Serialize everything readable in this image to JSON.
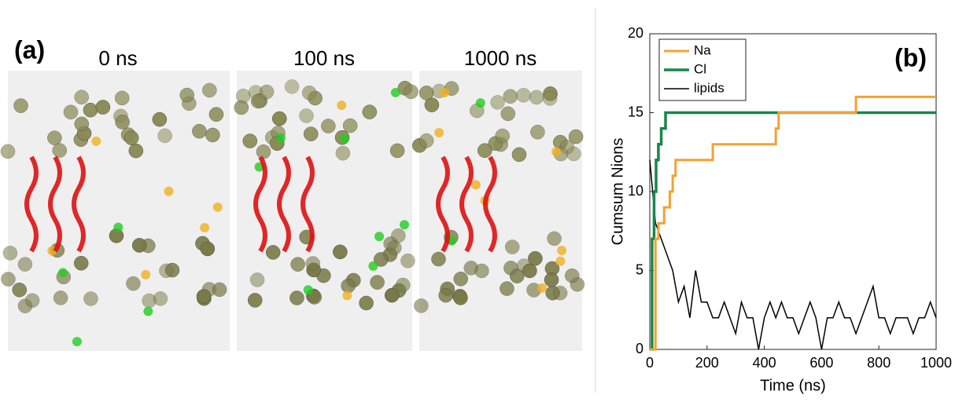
{
  "panel_a": {
    "label": "(a)",
    "snapshots": [
      "0 ns",
      "100 ns",
      "1000 ns"
    ]
  },
  "chart_data": {
    "type": "line",
    "panel_label": "(b)",
    "x_label": "Time (ns)",
    "y_label": "Cumsum Nions",
    "xlim": [
      0,
      1000
    ],
    "ylim": [
      0,
      20
    ],
    "xticks": [
      0,
      200,
      400,
      600,
      800,
      1000
    ],
    "yticks": [
      0,
      5,
      10,
      15,
      20
    ],
    "grid": false,
    "legend": "upper left",
    "series": [
      {
        "name": "Na",
        "color": "#f5a132",
        "width": 3,
        "x": [
          0,
          20,
          20,
          30,
          30,
          50,
          50,
          70,
          70,
          80,
          80,
          90,
          90,
          220,
          220,
          440,
          440,
          450,
          450,
          720,
          720,
          1000
        ],
        "values": [
          0,
          0,
          7,
          7,
          8,
          8,
          9,
          9,
          10,
          10,
          11,
          11,
          12,
          12,
          13,
          13,
          14,
          14,
          15,
          15,
          16,
          16
        ]
      },
      {
        "name": "Cl",
        "color": "#16884a",
        "width": 3.5,
        "x": [
          0,
          8,
          8,
          15,
          15,
          22,
          22,
          30,
          30,
          40,
          40,
          55,
          55,
          1000
        ],
        "values": [
          0,
          0,
          7,
          7,
          10,
          10,
          12,
          12,
          13,
          13,
          14,
          14,
          15,
          15
        ]
      },
      {
        "name": "lipids",
        "color": "#000000",
        "width": 1.5,
        "x": [
          0,
          20,
          40,
          60,
          80,
          100,
          120,
          140,
          160,
          180,
          200,
          220,
          240,
          260,
          280,
          300,
          320,
          340,
          360,
          380,
          400,
          420,
          440,
          460,
          480,
          500,
          520,
          540,
          560,
          580,
          600,
          620,
          640,
          660,
          680,
          700,
          720,
          740,
          760,
          780,
          800,
          820,
          840,
          860,
          880,
          900,
          920,
          940,
          960,
          980,
          1000
        ],
        "values": [
          12,
          8,
          7,
          6,
          5,
          3,
          4,
          2,
          5,
          3,
          3,
          2,
          2,
          3,
          2,
          1,
          3,
          2,
          2,
          0,
          2,
          3,
          2,
          3,
          2,
          2,
          1,
          2,
          3,
          2,
          0,
          2,
          2,
          3,
          2,
          2,
          1,
          2,
          3,
          4,
          2,
          2,
          1,
          2,
          2,
          2,
          1,
          2,
          2,
          3,
          2
        ]
      }
    ]
  }
}
